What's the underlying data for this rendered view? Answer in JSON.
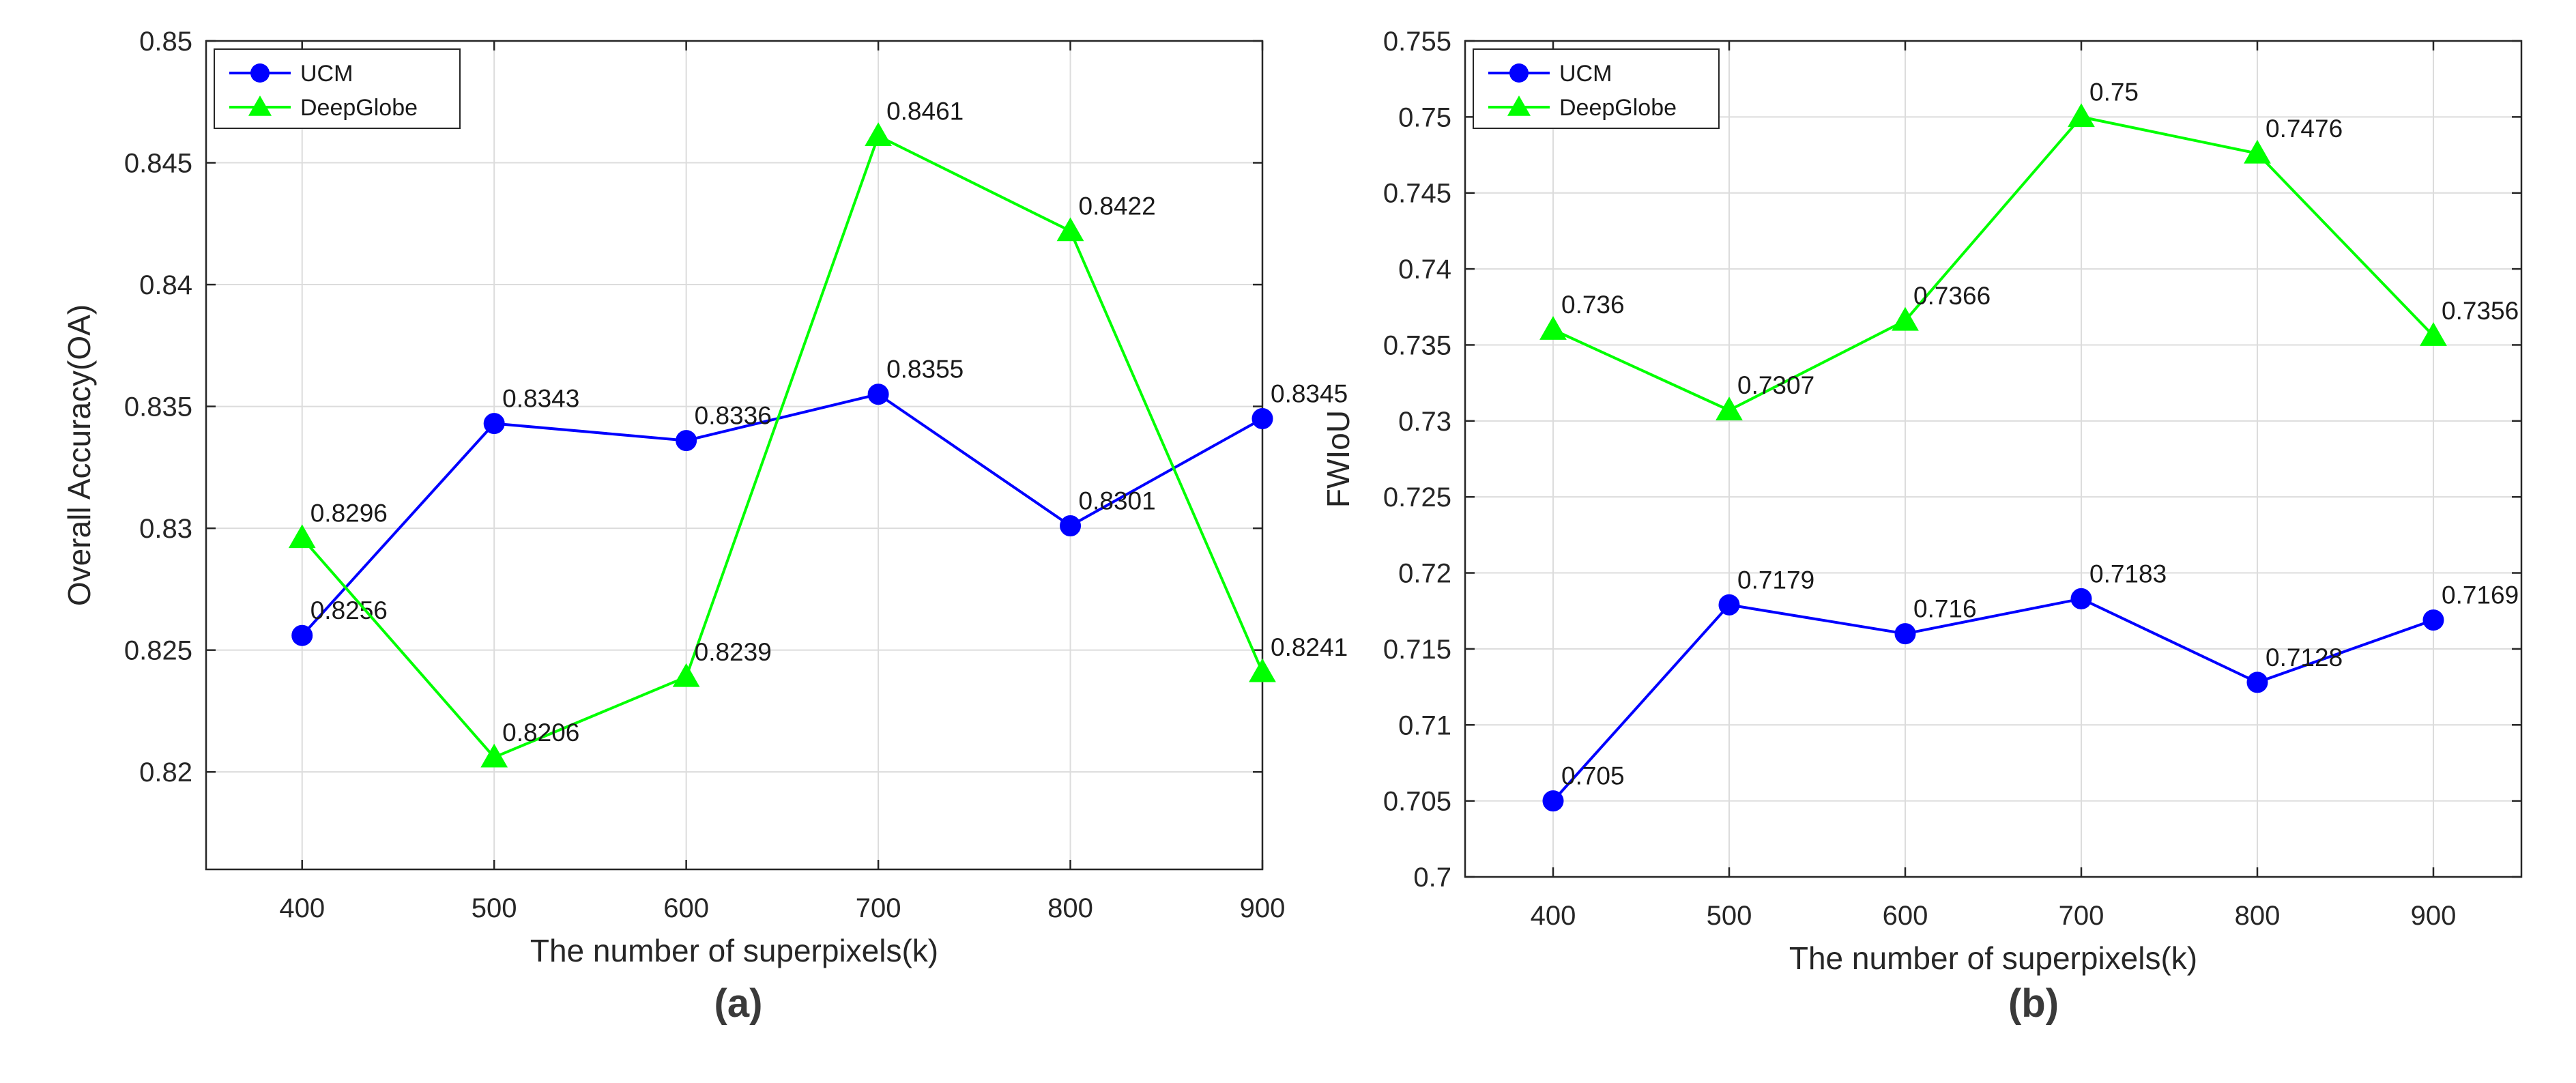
{
  "chart_data": [
    {
      "type": "line",
      "panel_label": "(a)",
      "title": "",
      "xlabel": "The number of superpixels(k)",
      "ylabel": "Overall Accuracy(OA)",
      "x": [
        400,
        500,
        600,
        700,
        800,
        900
      ],
      "xticks": [
        "400",
        "500",
        "600",
        "700",
        "800",
        "900"
      ],
      "xlim": [
        350,
        900
      ],
      "ylim": [
        0.816,
        0.85
      ],
      "yticks": [
        "0.82",
        "0.825",
        "0.83",
        "0.835",
        "0.84",
        "0.845",
        "0.85"
      ],
      "yticks_values": [
        0.82,
        0.825,
        0.83,
        0.835,
        0.84,
        0.845,
        0.85
      ],
      "grid": true,
      "legend_position": "top-left",
      "series": [
        {
          "name": "UCM",
          "color": "#0000ff",
          "marker": "circle",
          "values": [
            0.8256,
            0.8343,
            0.8336,
            0.8355,
            0.8301,
            0.8345
          ],
          "labels": [
            "0.8256",
            "0.8343",
            "0.8336",
            "0.8355",
            "0.8301",
            "0.8345"
          ]
        },
        {
          "name": "DeepGlobe",
          "color": "#00ff00",
          "marker": "triangle",
          "values": [
            0.8296,
            0.8206,
            0.8239,
            0.8461,
            0.8422,
            0.8241
          ],
          "labels": [
            "0.8296",
            "0.8206",
            "0.8239",
            "0.8461",
            "0.8422",
            "0.8241"
          ]
        }
      ]
    },
    {
      "type": "line",
      "panel_label": "(b)",
      "title": "",
      "xlabel": "The number of superpixels(k)",
      "ylabel": "FWIoU",
      "x": [
        400,
        500,
        600,
        700,
        800,
        900
      ],
      "xticks": [
        "400",
        "500",
        "600",
        "700",
        "800",
        "900"
      ],
      "xlim": [
        350,
        950
      ],
      "ylim": [
        0.7,
        0.755
      ],
      "yticks": [
        "0.7",
        "0.705",
        "0.71",
        "0.715",
        "0.72",
        "0.725",
        "0.73",
        "0.735",
        "0.74",
        "0.745",
        "0.75",
        "0.755"
      ],
      "yticks_values": [
        0.7,
        0.705,
        0.71,
        0.715,
        0.72,
        0.725,
        0.73,
        0.735,
        0.74,
        0.745,
        0.75,
        0.755
      ],
      "grid": true,
      "legend_position": "top-left",
      "series": [
        {
          "name": "UCM",
          "color": "#0000ff",
          "marker": "circle",
          "values": [
            0.705,
            0.7179,
            0.716,
            0.7183,
            0.7128,
            0.7169
          ],
          "labels": [
            "0.705",
            "0.7179",
            "0.716",
            "0.7183",
            "0.7128",
            "0.7169"
          ]
        },
        {
          "name": "DeepGlobe",
          "color": "#00ff00",
          "marker": "triangle",
          "values": [
            0.736,
            0.7307,
            0.7366,
            0.75,
            0.7476,
            0.7356
          ],
          "labels": [
            "0.736",
            "0.7307",
            "0.7366",
            "0.75",
            "0.7476",
            "0.7356"
          ]
        }
      ]
    }
  ]
}
